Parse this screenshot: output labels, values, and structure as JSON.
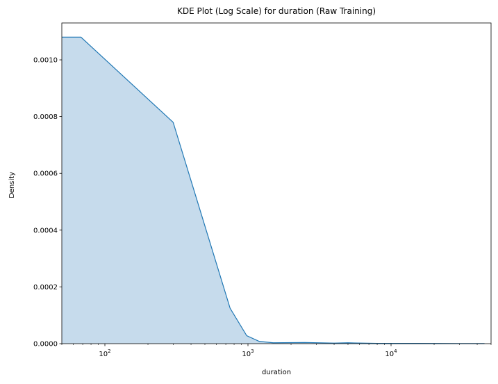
{
  "chart_data": {
    "type": "area",
    "title": "KDE Plot (Log Scale) for duration (Raw Training)",
    "xlabel": "duration",
    "ylabel": "Density",
    "xscale": "log",
    "xlim": [
      50,
      50000
    ],
    "ylim": [
      0,
      0.00113
    ],
    "grid": false,
    "x_ticks": [
      {
        "value": 100,
        "base": "10",
        "exp": "2"
      },
      {
        "value": 1000,
        "base": "10",
        "exp": "3"
      },
      {
        "value": 10000,
        "base": "10",
        "exp": "4"
      }
    ],
    "y_ticks": [
      {
        "value": 0,
        "label": "0.0000"
      },
      {
        "value": 0.0002,
        "label": "0.0002"
      },
      {
        "value": 0.0004,
        "label": "0.0004"
      },
      {
        "value": 0.0006,
        "label": "0.0006"
      },
      {
        "value": 0.0008,
        "label": "0.0008"
      },
      {
        "value": 0.001,
        "label": "0.0010"
      }
    ],
    "series": [
      {
        "color": "#1f77b4",
        "fill": "#c6dbec",
        "points": [
          [
            50,
            0.00108
          ],
          [
            68,
            0.00108
          ],
          [
            300,
            0.00078
          ],
          [
            750,
            0.000125
          ],
          [
            980,
            2.8e-05
          ],
          [
            1200,
            8e-06
          ],
          [
            1500,
            3e-06
          ],
          [
            2500,
            4e-06
          ],
          [
            4000,
            2e-06
          ],
          [
            5000,
            3e-06
          ],
          [
            8000,
            1e-06
          ],
          [
            15000,
            1e-06
          ],
          [
            30000,
            5e-07
          ],
          [
            45000,
            5e-07
          ]
        ]
      }
    ]
  }
}
